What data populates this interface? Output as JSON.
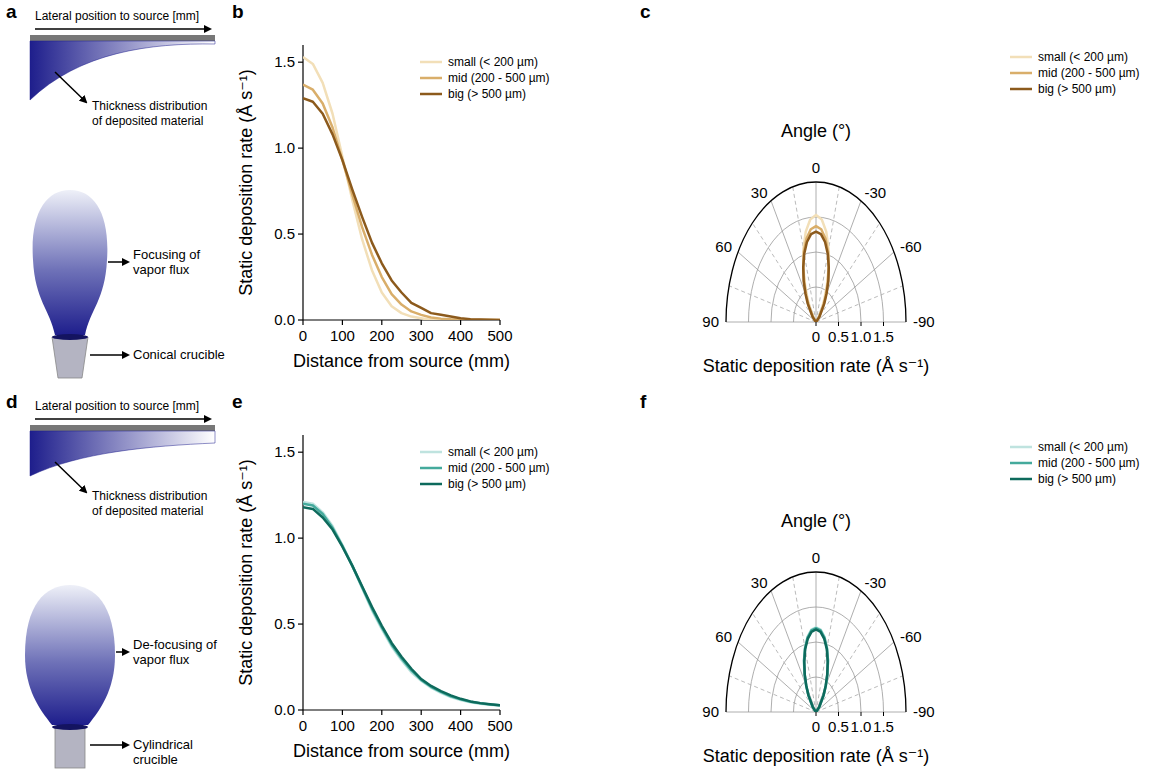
{
  "diagrams": [
    {
      "panel": "a",
      "axis_label": "Lateral position to source [mm]",
      "thickness_label": "Thickness distribution of deposited material",
      "flux_label": "Focusing of vapor flux",
      "crucible_label": "Conical crucible"
    },
    {
      "panel": "d",
      "axis_label": "Lateral position to source [mm]",
      "thickness_label": "Thickness distribution of deposited material",
      "flux_label": "De-focusing of vapor flux",
      "crucible_label": "Cylindrical crucible"
    }
  ],
  "chart_data": [
    {
      "panel": "b",
      "type": "line",
      "x_label": "Distance from source (mm)",
      "y_label": "Static deposition rate (Å s⁻¹)",
      "x": [
        0,
        25,
        50,
        75,
        100,
        125,
        150,
        175,
        200,
        225,
        250,
        275,
        300,
        325,
        350,
        375,
        400,
        425,
        450,
        475,
        500
      ],
      "xlim": [
        0,
        500
      ],
      "xticks": [
        0,
        100,
        200,
        300,
        400,
        500
      ],
      "ylim": [
        0,
        1.6
      ],
      "yticks": [
        {
          "value": 0,
          "label": "0.0"
        },
        0.5,
        {
          "value": 1,
          "label": "1.0"
        },
        1.5
      ],
      "grid": false,
      "legend": "top-right",
      "series": [
        {
          "name": "small (< 200 µm)",
          "color": "#f2dfb8",
          "values": [
            1.53,
            1.49,
            1.38,
            1.2,
            0.95,
            0.7,
            0.47,
            0.29,
            0.16,
            0.08,
            0.04,
            0.02,
            0.01,
            0,
            0,
            0,
            0,
            0,
            0,
            0,
            0
          ]
        },
        {
          "name": "mid (200 - 500 µm)",
          "color": "#d9ae6a",
          "values": [
            1.37,
            1.34,
            1.26,
            1.12,
            0.93,
            0.73,
            0.54,
            0.38,
            0.25,
            0.15,
            0.09,
            0.05,
            0.03,
            0.015,
            0.008,
            0.004,
            0.002,
            0,
            0,
            0,
            0
          ]
        },
        {
          "name": "big (> 500 µm)",
          "color": "#8c5a1c",
          "values": [
            1.29,
            1.27,
            1.2,
            1.08,
            0.93,
            0.76,
            0.6,
            0.45,
            0.33,
            0.23,
            0.16,
            0.1,
            0.07,
            0.04,
            0.03,
            0.02,
            0.01,
            0.005,
            0.003,
            0.001,
            0
          ]
        }
      ]
    },
    {
      "panel": "c",
      "type": "polar",
      "title": "Angle (°)",
      "y_label": "Static deposition rate (Å s⁻¹)",
      "x": [
        -90,
        -60,
        -45,
        -35,
        -30,
        -25,
        -20,
        -15,
        -10,
        -5,
        0,
        5,
        10,
        15,
        20,
        25,
        30,
        35,
        45,
        60,
        90
      ],
      "xlim": [
        -90,
        90
      ],
      "xticks": [
        -90,
        -60,
        -30,
        0,
        30,
        60,
        90
      ],
      "ylim": [
        0,
        2
      ],
      "yticks": [
        0,
        0.5,
        {
          "value": 1,
          "label": "1.0"
        },
        1.5
      ],
      "grid": true,
      "legend": "top-right",
      "series": [
        {
          "name": "small (< 200 µm)",
          "color": "#f2dfb8",
          "values": [
            0,
            0,
            0.05,
            0.21,
            0.36,
            0.57,
            0.82,
            1.08,
            1.31,
            1.47,
            1.53,
            1.47,
            1.31,
            1.08,
            0.82,
            0.57,
            0.36,
            0.21,
            0.05,
            0,
            0
          ]
        },
        {
          "name": "mid (200 - 500 µm)",
          "color": "#d9ae6a",
          "values": [
            0,
            0.01,
            0.09,
            0.28,
            0.43,
            0.62,
            0.83,
            1.04,
            1.21,
            1.33,
            1.37,
            1.33,
            1.21,
            1.04,
            0.83,
            0.62,
            0.43,
            0.28,
            0.09,
            0.01,
            0
          ]
        },
        {
          "name": "big (> 500 µm)",
          "color": "#8c5a1c",
          "values": [
            0,
            0.01,
            0.11,
            0.32,
            0.47,
            0.65,
            0.83,
            1.01,
            1.16,
            1.26,
            1.29,
            1.26,
            1.16,
            1.01,
            0.83,
            0.65,
            0.47,
            0.32,
            0.11,
            0.01,
            0
          ]
        }
      ]
    },
    {
      "panel": "e",
      "type": "line",
      "x_label": "Distance from source (mm)",
      "y_label": "Static deposition rate (Å s⁻¹)",
      "x": [
        0,
        25,
        50,
        75,
        100,
        125,
        150,
        175,
        200,
        225,
        250,
        275,
        300,
        325,
        350,
        375,
        400,
        425,
        450,
        475,
        500
      ],
      "xlim": [
        0,
        500
      ],
      "xticks": [
        0,
        100,
        200,
        300,
        400,
        500
      ],
      "ylim": [
        0,
        1.6
      ],
      "yticks": [
        {
          "value": 0,
          "label": "0.0"
        },
        0.5,
        {
          "value": 1,
          "label": "1.0"
        },
        1.5
      ],
      "grid": false,
      "legend": "top-right",
      "series": [
        {
          "name": "small (< 200 µm)",
          "color": "#bfe3df",
          "values": [
            1.21,
            1.2,
            1.15,
            1.07,
            0.96,
            0.84,
            0.71,
            0.58,
            0.47,
            0.37,
            0.29,
            0.22,
            0.17,
            0.13,
            0.1,
            0.075,
            0.058,
            0.045,
            0.036,
            0.03,
            0.025
          ]
        },
        {
          "name": "mid (200 - 500 µm)",
          "color": "#44aa9c",
          "values": [
            1.2,
            1.19,
            1.14,
            1.06,
            0.955,
            0.84,
            0.715,
            0.59,
            0.48,
            0.38,
            0.3,
            0.23,
            0.175,
            0.135,
            0.105,
            0.08,
            0.062,
            0.048,
            0.039,
            0.032,
            0.027
          ]
        },
        {
          "name": "big (> 500 µm)",
          "color": "#0d6a5c",
          "values": [
            1.18,
            1.17,
            1.12,
            1.05,
            0.95,
            0.84,
            0.72,
            0.6,
            0.49,
            0.39,
            0.31,
            0.24,
            0.18,
            0.14,
            0.11,
            0.085,
            0.065,
            0.05,
            0.04,
            0.033,
            0.027
          ]
        }
      ]
    },
    {
      "panel": "f",
      "type": "polar",
      "title": "Angle (°)",
      "y_label": "Static deposition rate (Å s⁻¹)",
      "x": [
        -90,
        -60,
        -45,
        -35,
        -30,
        -25,
        -20,
        -15,
        -10,
        -5,
        0,
        5,
        10,
        15,
        20,
        25,
        30,
        35,
        45,
        60,
        90
      ],
      "xlim": [
        -90,
        90
      ],
      "xticks": [
        -90,
        -60,
        -30,
        0,
        30,
        60,
        90
      ],
      "ylim": [
        0,
        2
      ],
      "yticks": [
        0,
        0.5,
        {
          "value": 1,
          "label": "1.0"
        },
        1.5
      ],
      "grid": true,
      "legend": "top-right",
      "series": [
        {
          "name": "small (< 200 µm)",
          "color": "#bfe3df",
          "values": [
            0,
            0.01,
            0.11,
            0.3,
            0.44,
            0.61,
            0.78,
            0.95,
            1.09,
            1.18,
            1.21,
            1.18,
            1.09,
            0.95,
            0.78,
            0.61,
            0.44,
            0.3,
            0.11,
            0.01,
            0
          ]
        },
        {
          "name": "mid (200 - 500 µm)",
          "color": "#44aa9c",
          "values": [
            0,
            0.01,
            0.11,
            0.3,
            0.44,
            0.6,
            0.78,
            0.94,
            1.08,
            1.17,
            1.2,
            1.17,
            1.08,
            0.94,
            0.78,
            0.6,
            0.44,
            0.3,
            0.11,
            0.01,
            0
          ]
        },
        {
          "name": "big (> 500 µm)",
          "color": "#0d6a5c",
          "values": [
            0,
            0.01,
            0.1,
            0.29,
            0.43,
            0.59,
            0.76,
            0.93,
            1.06,
            1.15,
            1.18,
            1.15,
            1.06,
            0.93,
            0.76,
            0.59,
            0.43,
            0.29,
            0.1,
            0.01,
            0
          ]
        }
      ]
    }
  ]
}
